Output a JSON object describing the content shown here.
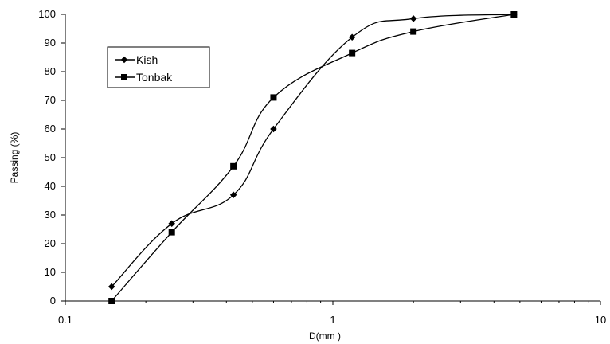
{
  "chart_data": {
    "type": "line",
    "title": "",
    "xlabel": "D(mm )",
    "ylabel": "Passing (%)",
    "x_scale": "log",
    "xlim": [
      0.1,
      10
    ],
    "ylim": [
      0,
      100
    ],
    "x_ticks": [
      "0.1",
      "1",
      "10"
    ],
    "y_ticks": [
      "0",
      "10",
      "20",
      "30",
      "40",
      "50",
      "60",
      "70",
      "80",
      "90",
      "100"
    ],
    "grid": false,
    "legend_position": "upper-left",
    "series": [
      {
        "name": "Kish",
        "marker": "diamond",
        "color": "#000000",
        "x": [
          0.149,
          0.25,
          0.425,
          0.6,
          1.18,
          2.0,
          4.75
        ],
        "y": [
          5,
          27,
          37,
          60,
          92,
          98.5,
          100
        ]
      },
      {
        "name": "Tonbak",
        "marker": "square",
        "color": "#000000",
        "x": [
          0.149,
          0.25,
          0.425,
          0.6,
          1.18,
          2.0,
          4.75
        ],
        "y": [
          0,
          24,
          47,
          71,
          86.5,
          94,
          100
        ]
      }
    ]
  }
}
